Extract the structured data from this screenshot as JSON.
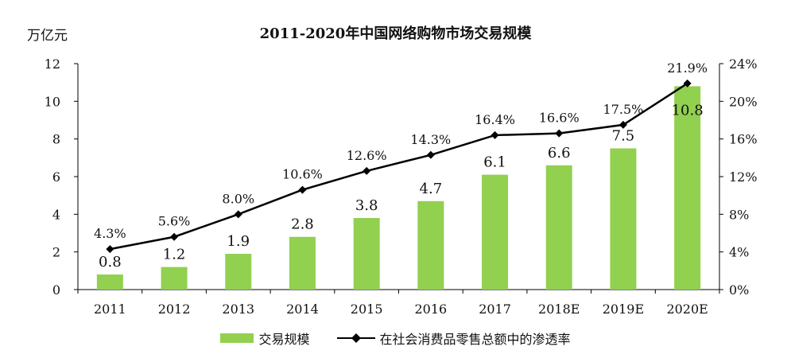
{
  "unit_label": "万亿元",
  "chart_data": {
    "type": "bar",
    "title": "2011-2020年中国网络购物市场交易规模",
    "categories": [
      "2011",
      "2012",
      "2013",
      "2014",
      "2015",
      "2016",
      "2017",
      "2018E",
      "2019E",
      "2020E"
    ],
    "series": [
      {
        "name": "交易规模",
        "type": "bar",
        "axis": "left",
        "color": "#92D050",
        "values": [
          0.8,
          1.2,
          1.9,
          2.8,
          3.8,
          4.7,
          6.1,
          6.6,
          7.5,
          10.8
        ],
        "labels": [
          "0.8",
          "1.2",
          "1.9",
          "2.8",
          "3.8",
          "4.7",
          "6.1",
          "6.6",
          "7.5",
          "10.8"
        ]
      },
      {
        "name": "在社会消费品零售总额中的渗透率",
        "type": "line",
        "axis": "right",
        "color": "#000000",
        "values": [
          4.3,
          5.6,
          8.0,
          10.6,
          12.6,
          14.3,
          16.4,
          16.6,
          17.5,
          21.9
        ],
        "labels": [
          "4.3%",
          "5.6%",
          "8.0%",
          "10.6%",
          "12.6%",
          "14.3%",
          "16.4%",
          "16.6%",
          "17.5%",
          "21.9%"
        ]
      }
    ],
    "y_left": {
      "ylim": [
        0,
        12
      ],
      "ticks": [
        "0",
        "2",
        "4",
        "6",
        "8",
        "10",
        "12"
      ]
    },
    "y_right": {
      "ylim": [
        0,
        24
      ],
      "ticks": [
        "0%",
        "4%",
        "8%",
        "12%",
        "16%",
        "20%",
        "24%"
      ]
    },
    "legend_position": "bottom"
  }
}
